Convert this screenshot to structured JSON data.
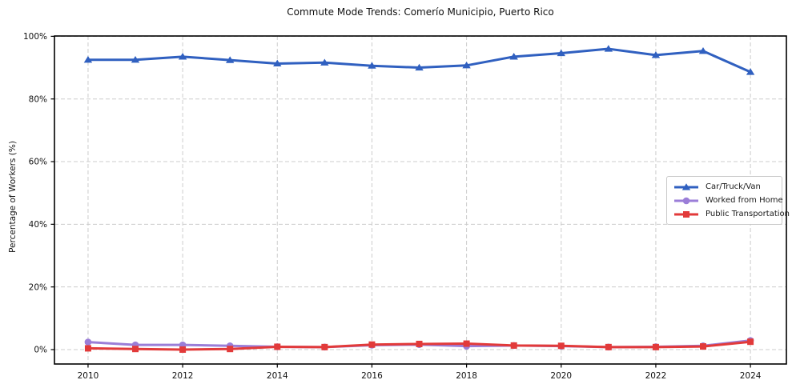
{
  "figure": {
    "background": "#ffffff"
  },
  "chart_data": {
    "type": "line",
    "title": "Commute Mode Trends: Comerío Municipio, Puerto Rico",
    "xlabel": "",
    "ylabel": "Percentage of Workers (%)",
    "x": [
      2010,
      2011,
      2012,
      2013,
      2014,
      2015,
      2016,
      2017,
      2018,
      2019,
      2020,
      2021,
      2022,
      2023,
      2024
    ],
    "series": [
      {
        "name": "Car/Truck/Van",
        "color": "#3060c0",
        "marker": "triangle",
        "values": [
          92.5,
          92.5,
          93.5,
          92.4,
          91.3,
          91.6,
          90.6,
          90.0,
          90.7,
          93.5,
          94.6,
          96.0,
          94.0,
          95.3,
          88.6
        ]
      },
      {
        "name": "Worked from Home",
        "color": "#9b7ed8",
        "marker": "circle",
        "values": [
          2.4,
          1.5,
          1.5,
          1.2,
          0.9,
          0.8,
          1.4,
          1.6,
          1.1,
          1.3,
          1.1,
          0.8,
          0.9,
          1.2,
          2.9
        ]
      },
      {
        "name": "Public Transportation",
        "color": "#e23a3a",
        "marker": "square",
        "values": [
          0.4,
          0.2,
          0.0,
          0.2,
          0.9,
          0.8,
          1.6,
          1.8,
          1.9,
          1.3,
          1.2,
          0.8,
          0.8,
          1.0,
          2.5
        ]
      }
    ],
    "xticks": [
      2010,
      2012,
      2014,
      2016,
      2018,
      2020,
      2022,
      2024
    ],
    "ytick_values": [
      0,
      20,
      40,
      60,
      80,
      100
    ],
    "ytick_labels": [
      "0%",
      "20%",
      "40%",
      "60%",
      "80%",
      "100%"
    ],
    "xlim": [
      2009.29,
      2024.76
    ],
    "ylim": [
      -4.6,
      100.1
    ],
    "grid": true,
    "grid_color": "#cccccc",
    "spine_color": "#000000",
    "legend_position": "center-right"
  }
}
